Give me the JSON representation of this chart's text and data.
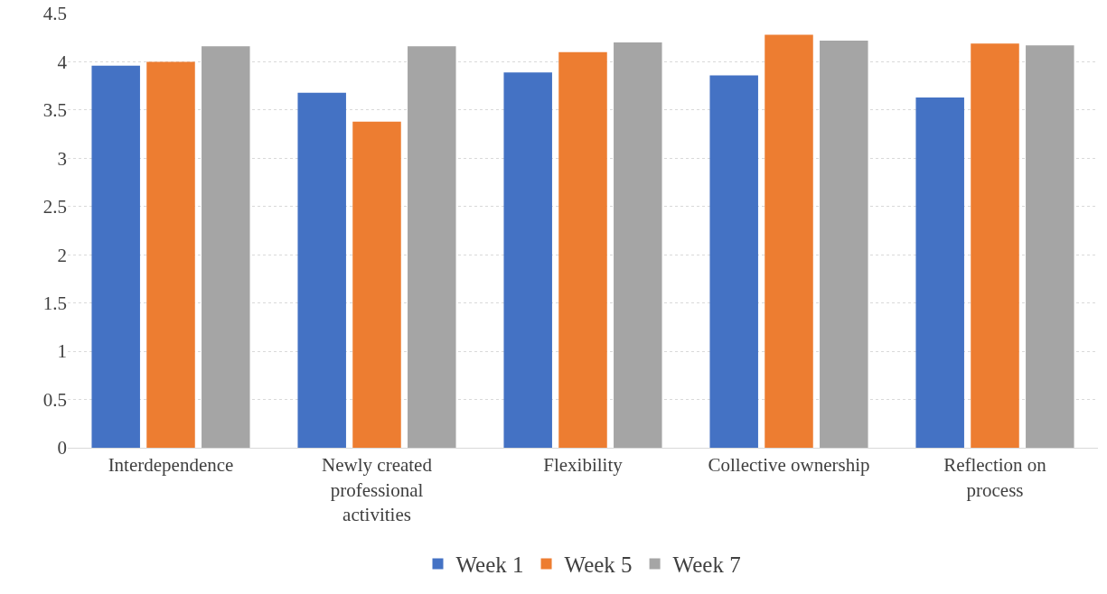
{
  "chart_data": {
    "type": "bar",
    "categories": [
      "Interdependence",
      "Newly created professional activities",
      "Flexibility",
      "Collective ownership",
      "Reflection on process"
    ],
    "series": [
      {
        "name": "Week 1",
        "color": "#4472c4",
        "values": [
          3.96,
          3.68,
          3.89,
          3.86,
          3.63
        ]
      },
      {
        "name": "Week 5",
        "color": "#ed7d31",
        "values": [
          4.0,
          3.38,
          4.1,
          4.28,
          4.19
        ]
      },
      {
        "name": "Week 7",
        "color": "#a5a5a5",
        "values": [
          4.16,
          4.16,
          4.2,
          4.22,
          4.17
        ]
      }
    ],
    "ylim": [
      0,
      4.5
    ],
    "yticks": [
      0,
      0.5,
      1,
      1.5,
      2,
      2.5,
      3,
      3.5,
      4,
      4.5
    ],
    "grid": "y",
    "legend": "bottom"
  }
}
